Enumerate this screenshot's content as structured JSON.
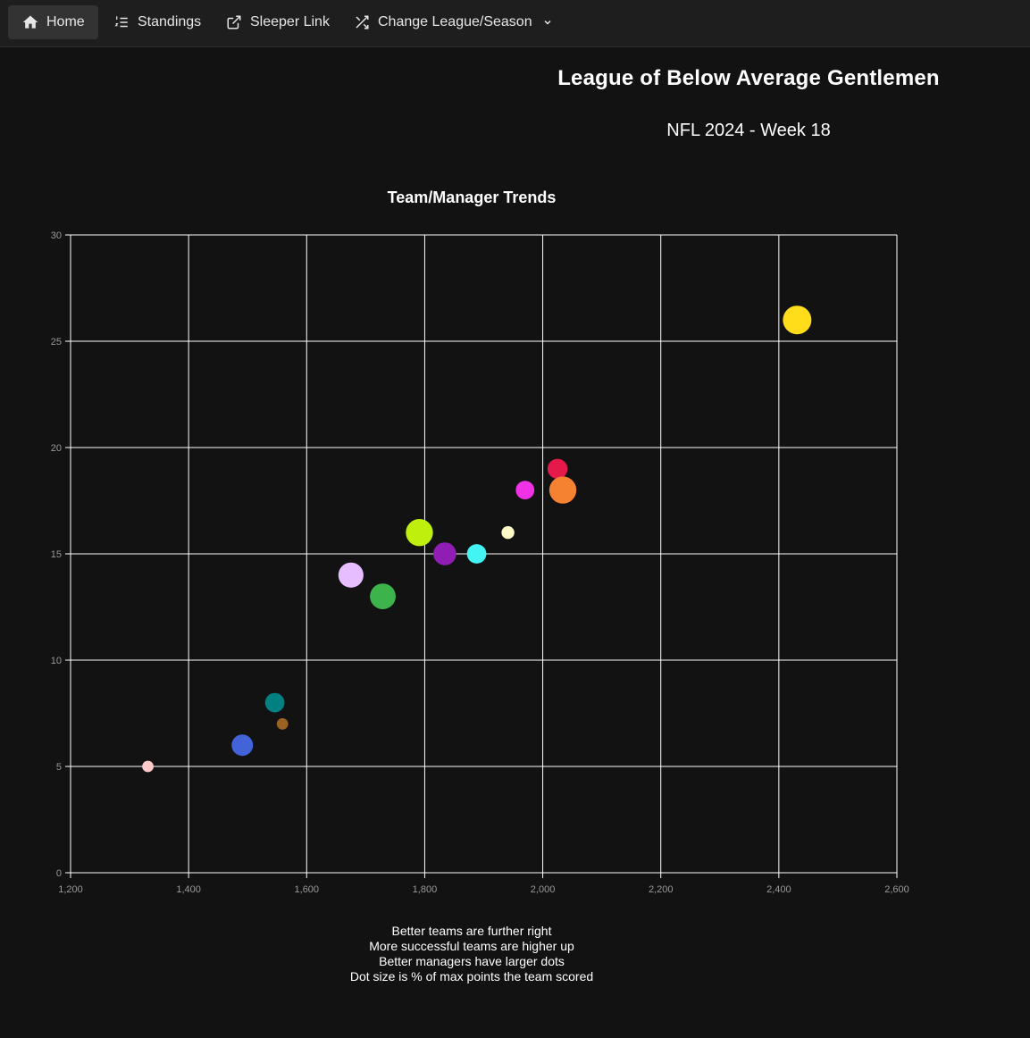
{
  "nav": {
    "items": [
      {
        "label": "Home",
        "icon": "home-icon",
        "active": true
      },
      {
        "label": "Standings",
        "icon": "list-ordered-icon",
        "active": false
      },
      {
        "label": "Sleeper Link",
        "icon": "external-link-icon",
        "active": false
      },
      {
        "label": "Change League/Season",
        "icon": "shuffle-icon",
        "active": false
      }
    ]
  },
  "header": {
    "league_name": "League of Below Average Gentlemen",
    "season": "NFL 2024 - Week 18"
  },
  "chart_data": {
    "type": "scatter",
    "title": "Team/Manager Trends",
    "xlabel": "",
    "ylabel": "",
    "xlim": [
      1200,
      2600
    ],
    "ylim": [
      0,
      30
    ],
    "x_ticks": [
      "1,200",
      "1,400",
      "1,600",
      "1,800",
      "2,000",
      "2,200",
      "2,400",
      "2,600"
    ],
    "y_ticks": [
      "0",
      "5",
      "10",
      "15",
      "20",
      "25",
      "30"
    ],
    "grid": true,
    "points": [
      {
        "x": 2431,
        "y": 26,
        "size": 1.0,
        "color": "#FFDD1A"
      },
      {
        "x": 2025,
        "y": 19,
        "size": 0.7,
        "color": "#E6194B"
      },
      {
        "x": 2034,
        "y": 18,
        "size": 0.95,
        "color": "#F58231"
      },
      {
        "x": 1970,
        "y": 18,
        "size": 0.65,
        "color": "#F032E6"
      },
      {
        "x": 1941,
        "y": 16,
        "size": 0.45,
        "color": "#FFFAC8"
      },
      {
        "x": 1791,
        "y": 16,
        "size": 0.95,
        "color": "#BFEF0C"
      },
      {
        "x": 1888,
        "y": 15,
        "size": 0.68,
        "color": "#42F4F4"
      },
      {
        "x": 1834,
        "y": 15,
        "size": 0.8,
        "color": "#911EB4"
      },
      {
        "x": 1675,
        "y": 14,
        "size": 0.88,
        "color": "#E6BEFF"
      },
      {
        "x": 1729,
        "y": 13,
        "size": 0.9,
        "color": "#3CB44B"
      },
      {
        "x": 1546,
        "y": 8,
        "size": 0.68,
        "color": "#008080"
      },
      {
        "x": 1559,
        "y": 7,
        "size": 0.4,
        "color": "#9A6324"
      },
      {
        "x": 1491,
        "y": 6,
        "size": 0.75,
        "color": "#4363D8"
      },
      {
        "x": 1331,
        "y": 5,
        "size": 0.4,
        "color": "#FFC9C9"
      }
    ],
    "notes": [
      "Better teams are further right",
      "More successful teams are higher up",
      "Better managers have larger dots",
      "Dot size is % of max points the team scored"
    ]
  },
  "colors": {
    "background": "#121212",
    "navbar": "#1e1e1e",
    "grid": "#ffffff",
    "tick_text": "#9a9a9a"
  }
}
